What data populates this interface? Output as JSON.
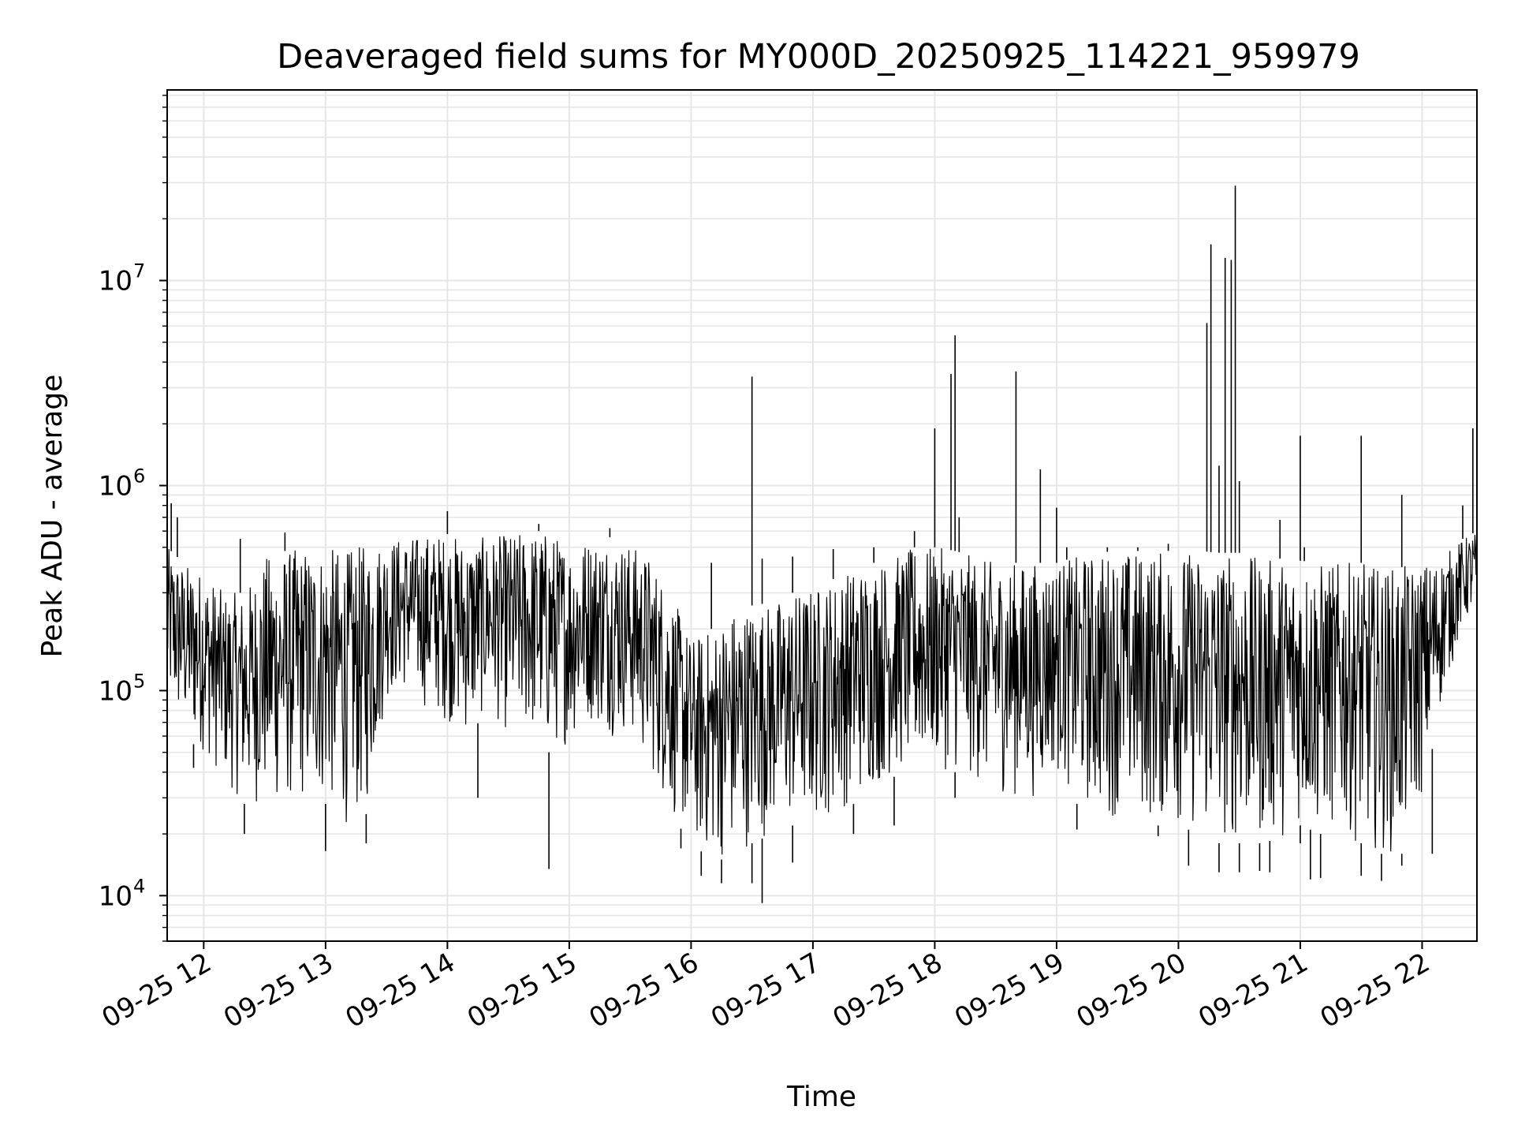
{
  "chart_data": {
    "type": "line",
    "title": "Deaveraged field sums for MY000D_20250925_114221_959979",
    "xlabel": "Time",
    "ylabel": "Peak ADU - average",
    "yscale": "log",
    "grid": true,
    "line_color": "#000000",
    "grid_color": "#e6e6e6",
    "xlim": [
      "2025-09-25 11:42",
      "2025-09-25 22:27"
    ],
    "ylim": [
      6000,
      85000000
    ],
    "x_ticks": [
      {
        "value": "2025-09-25 12:00",
        "label": "09-25 12"
      },
      {
        "value": "2025-09-25 13:00",
        "label": "09-25 13"
      },
      {
        "value": "2025-09-25 14:00",
        "label": "09-25 14"
      },
      {
        "value": "2025-09-25 15:00",
        "label": "09-25 15"
      },
      {
        "value": "2025-09-25 16:00",
        "label": "09-25 16"
      },
      {
        "value": "2025-09-25 17:00",
        "label": "09-25 17"
      },
      {
        "value": "2025-09-25 18:00",
        "label": "09-25 18"
      },
      {
        "value": "2025-09-25 19:00",
        "label": "09-25 19"
      },
      {
        "value": "2025-09-25 20:00",
        "label": "09-25 20"
      },
      {
        "value": "2025-09-25 21:00",
        "label": "09-25 21"
      },
      {
        "value": "2025-09-25 22:00",
        "label": "09-25 22"
      }
    ],
    "y_ticks": [
      {
        "value": 10000,
        "base": "10",
        "exp": "4"
      },
      {
        "value": 100000,
        "base": "10",
        "exp": "5"
      },
      {
        "value": 1000000,
        "base": "10",
        "exp": "6"
      },
      {
        "value": 10000000,
        "base": "10",
        "exp": "7"
      }
    ],
    "series": [
      {
        "type": "band",
        "x": [
          "11:42",
          "11:50",
          "12:00",
          "12:10",
          "12:20",
          "12:30",
          "12:40",
          "12:50",
          "13:00",
          "13:10",
          "13:20",
          "13:30",
          "13:40",
          "13:50",
          "14:00",
          "14:10",
          "14:20",
          "14:30",
          "14:40",
          "14:50",
          "15:00",
          "15:10",
          "15:20",
          "15:30",
          "15:40",
          "15:50",
          "16:00",
          "16:10",
          "16:20",
          "16:30",
          "16:40",
          "16:50",
          "17:00",
          "17:10",
          "17:20",
          "17:30",
          "17:40",
          "17:50",
          "18:00",
          "18:10",
          "18:20",
          "18:30",
          "18:40",
          "18:50",
          "19:00",
          "19:10",
          "19:20",
          "19:30",
          "19:40",
          "19:50",
          "20:00",
          "20:10",
          "20:20",
          "20:30",
          "20:40",
          "20:50",
          "21:00",
          "21:10",
          "21:20",
          "21:30",
          "21:40",
          "21:50",
          "22:00",
          "22:10",
          "22:20",
          "22:27"
        ],
        "low": [
          80000,
          60000,
          50000,
          35000,
          28000,
          27000,
          27000,
          28000,
          28000,
          22000,
          25000,
          90000,
          100000,
          80000,
          70000,
          60000,
          80000,
          60000,
          60000,
          50000,
          55000,
          70000,
          60000,
          60000,
          40000,
          25000,
          18000,
          15000,
          15000,
          18000,
          20000,
          22000,
          22000,
          25000,
          28000,
          33000,
          38000,
          40000,
          42000,
          40000,
          35000,
          32000,
          30000,
          30000,
          40000,
          28000,
          25000,
          24000,
          24000,
          22000,
          22000,
          20000,
          18000,
          18000,
          18000,
          19000,
          22000,
          20000,
          20000,
          18000,
          16000,
          16000,
          30000,
          90000,
          200000,
          250000
        ],
        "high": [
          500000,
          420000,
          380000,
          300000,
          300000,
          450000,
          480000,
          500000,
          500000,
          480000,
          520000,
          550000,
          560000,
          580000,
          580000,
          550000,
          560000,
          580000,
          600000,
          600000,
          520000,
          560000,
          560000,
          520000,
          450000,
          300000,
          180000,
          200000,
          250000,
          260000,
          270000,
          300000,
          320000,
          350000,
          400000,
          420000,
          450000,
          500000,
          500000,
          480000,
          450000,
          420000,
          420000,
          420000,
          420000,
          450000,
          470000,
          480000,
          480000,
          480000,
          480000,
          480000,
          470000,
          470000,
          440000,
          440000,
          430000,
          420000,
          420000,
          420000,
          400000,
          400000,
          420000,
          450000,
          550000,
          600000
        ]
      },
      {
        "type": "spikes",
        "x": [
          "11:44",
          "11:47",
          "12:18",
          "12:40",
          "14:00",
          "14:45",
          "15:20",
          "16:10",
          "16:30",
          "16:35",
          "16:50",
          "17:10",
          "17:30",
          "17:50",
          "18:00",
          "18:08",
          "18:10",
          "18:12",
          "18:40",
          "18:52",
          "19:00",
          "19:05",
          "19:25",
          "19:40",
          "19:55",
          "20:14",
          "20:16",
          "20:20",
          "20:23",
          "20:26",
          "20:28",
          "20:30",
          "20:50",
          "21:00",
          "21:02",
          "21:30",
          "21:50",
          "22:20",
          "22:25"
        ],
        "y": [
          820000,
          700000,
          550000,
          590000,
          750000,
          650000,
          620000,
          420000,
          3400000,
          440000,
          450000,
          490000,
          500000,
          600000,
          1900000,
          3500000,
          5400000,
          700000,
          3600000,
          1200000,
          780000,
          500000,
          500000,
          500000,
          520000,
          6200000,
          15000000,
          1250000,
          12900000,
          12600000,
          29000000,
          1050000,
          680000,
          1750000,
          500000,
          1750000,
          900000,
          800000,
          1900000
        ]
      },
      {
        "type": "dips",
        "x": [
          "11:55",
          "12:20",
          "13:00",
          "13:20",
          "14:15",
          "14:50",
          "15:55",
          "16:05",
          "16:15",
          "16:30",
          "16:35",
          "16:50",
          "17:20",
          "17:40",
          "18:10",
          "19:10",
          "19:50",
          "20:05",
          "20:20",
          "20:30",
          "20:40",
          "20:45",
          "21:00",
          "21:05",
          "21:10",
          "21:30",
          "21:40",
          "21:50",
          "22:05"
        ],
        "y": [
          42000,
          20000,
          16500,
          18000,
          30000,
          13500,
          17000,
          12500,
          11500,
          11500,
          9200,
          14500,
          20000,
          22000,
          30000,
          21000,
          19500,
          14000,
          13000,
          13000,
          13200,
          13000,
          18000,
          12000,
          12200,
          12500,
          11800,
          14000,
          16000
        ]
      }
    ]
  }
}
